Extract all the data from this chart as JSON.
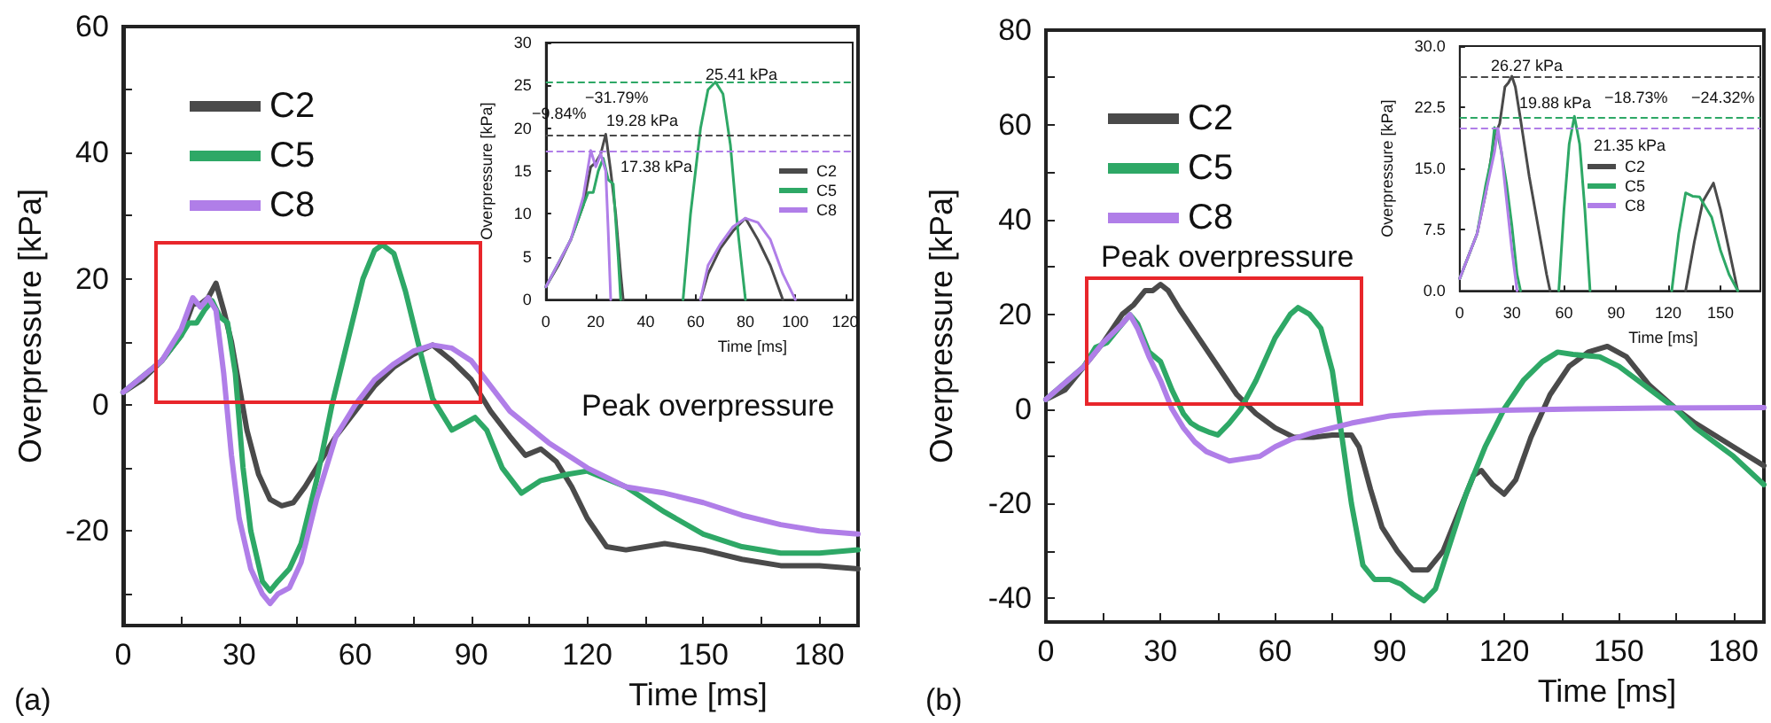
{
  "chart_data": [
    {
      "type": "line",
      "xlabel": "Time [ms]",
      "ylabel": "Overpressure [kPa]",
      "xlim": [
        0,
        190
      ],
      "ylim": [
        -35,
        60
      ],
      "xticks": [
        0,
        {
          "value": 15,
          "label": null
        },
        30,
        {
          "value": 45,
          "label": null
        },
        60,
        {
          "value": 75,
          "label": null
        },
        90,
        {
          "value": 105,
          "label": null
        },
        120,
        {
          "value": 135,
          "label": null
        },
        150,
        {
          "value": 165,
          "label": null
        },
        180
      ],
      "yticks": [
        {
          "value": -30,
          "label": null
        },
        -20,
        {
          "value": -10,
          "label": null
        },
        0,
        {
          "value": 10,
          "label": null
        },
        20,
        {
          "value": 30,
          "label": null
        },
        40,
        {
          "value": 50,
          "label": null
        },
        60
      ],
      "legend": "top left",
      "marker": "none",
      "line_style": "solid",
      "series": [
        {
          "name": "C2",
          "color": "#4a4a4a",
          "x": [
            0,
            5,
            10,
            15,
            18,
            20,
            22,
            24,
            26,
            28,
            30,
            32,
            35,
            38,
            41,
            44,
            47,
            50,
            55,
            60,
            65,
            70,
            75,
            80,
            85,
            90,
            95,
            100,
            104,
            108,
            112,
            116,
            120,
            125,
            130,
            140,
            150,
            160,
            170,
            180,
            190
          ],
          "values": [
            2,
            4,
            7,
            11,
            16,
            16,
            17,
            19.3,
            15,
            10,
            3,
            -4,
            -11,
            -15,
            -16,
            -15.5,
            -13,
            -10,
            -5,
            -1,
            3,
            6,
            8,
            9.5,
            7,
            4,
            -1,
            -5,
            -8,
            -7,
            -9,
            -13,
            -18,
            -22.5,
            -23,
            -22,
            -23,
            -24.5,
            -25.5,
            -25.5,
            -26
          ]
        },
        {
          "name": "C5",
          "color": "#2ea866",
          "x": [
            0,
            10,
            15,
            17,
            19,
            21,
            23,
            25,
            27,
            29,
            31,
            33,
            36,
            38,
            40,
            43,
            46,
            50,
            54,
            58,
            62,
            65,
            67,
            70,
            73,
            77,
            80,
            83,
            85,
            88,
            91,
            94,
            98,
            103,
            108,
            115,
            120,
            130,
            140,
            150,
            160,
            170,
            180,
            190
          ],
          "values": [
            2,
            7,
            11,
            13,
            13,
            15,
            16.5,
            14,
            13,
            5,
            -10,
            -20,
            -28,
            -29.5,
            -28,
            -26,
            -22,
            -12,
            0,
            10,
            20,
            24.5,
            25.4,
            24,
            18,
            8,
            1,
            -2,
            -4,
            -3,
            -2,
            -4,
            -10,
            -14,
            -12,
            -11,
            -10.5,
            -13,
            -17,
            -20.5,
            -22.5,
            -23.5,
            -23.5,
            -23
          ]
        },
        {
          "name": "C8",
          "color": "#b07ee8",
          "x": [
            0,
            10,
            15,
            18,
            20,
            22,
            24,
            26,
            28,
            30,
            33,
            36,
            38,
            40,
            43,
            46,
            50,
            55,
            60,
            65,
            70,
            75,
            80,
            85,
            90,
            95,
            100,
            110,
            120,
            130,
            140,
            150,
            160,
            170,
            180,
            190
          ],
          "values": [
            2,
            7,
            12,
            17,
            15.5,
            17,
            15,
            5,
            -8,
            -18,
            -26,
            -30,
            -31.5,
            -30,
            -29,
            -25,
            -15,
            -5,
            0,
            4,
            6.5,
            8.5,
            9.5,
            9,
            7,
            3,
            -1,
            -6,
            -10,
            -13,
            -14,
            -15.5,
            -17.5,
            -19,
            -20,
            -20.5
          ]
        }
      ],
      "annotations": [
        "Peak overpressure",
        "(a)"
      ]
    },
    {
      "type": "line",
      "xlabel": "Time [ms]",
      "ylabel": "Overpressure [kPa]",
      "xlim": [
        0,
        123
      ],
      "ylim": [
        0,
        30
      ],
      "xticks": [
        0,
        20,
        40,
        60,
        80,
        100,
        120
      ],
      "yticks": [
        0,
        5,
        10,
        15,
        20,
        25,
        30
      ],
      "legend": "right",
      "marker": "none",
      "line_style": "solid",
      "series": [
        {
          "name": "C2",
          "color": "#4a4a4a",
          "x": [
            0,
            5,
            10,
            15,
            18,
            20,
            22,
            24,
            26,
            28,
            30,
            31,
            45,
            62,
            65,
            70,
            75,
            80,
            85,
            90,
            95
          ],
          "values": [
            1.5,
            4,
            7,
            11,
            15.5,
            16,
            17,
            19.3,
            15,
            10,
            3,
            0,
            null,
            0,
            3,
            6,
            8,
            9.5,
            7,
            4,
            0
          ]
        },
        {
          "name": "C5",
          "color": "#2ea866",
          "x": [
            0,
            10,
            15,
            17,
            19,
            21,
            23,
            25,
            27,
            29,
            30,
            45,
            55,
            58,
            62,
            65,
            68,
            71,
            74,
            77,
            80
          ],
          "values": [
            1.5,
            7,
            11,
            12.5,
            12.5,
            15,
            16.5,
            14,
            13.5,
            5,
            0,
            null,
            0,
            10,
            20,
            24.5,
            25.4,
            24,
            18,
            8,
            0
          ]
        },
        {
          "name": "C8",
          "color": "#b07ee8",
          "x": [
            0,
            10,
            15,
            18,
            20,
            22,
            24,
            25,
            26,
            45,
            62,
            65,
            70,
            75,
            80,
            85,
            90,
            95,
            100
          ],
          "values": [
            1.5,
            7,
            12,
            17.4,
            15.5,
            17,
            15,
            8,
            0,
            null,
            0,
            4,
            6.5,
            8.5,
            9.5,
            9,
            7,
            3,
            0
          ]
        }
      ],
      "ref_lines": [
        {
          "axis": "y",
          "value": 25.41,
          "color": "#2ea866",
          "line_style": "dashed"
        },
        {
          "axis": "y",
          "value": 19.28,
          "color": "#4a4a4a",
          "line_style": "dashed"
        },
        {
          "axis": "y",
          "value": 17.38,
          "color": "#b07ee8",
          "line_style": "dashed"
        }
      ],
      "annotations": [
        "25.41 kPa",
        "−31.79%",
        "−9.84%",
        "19.28 kPa",
        "17.38 kPa"
      ]
    },
    {
      "type": "line",
      "xlabel": "Time [ms]",
      "ylabel": "Overpressure [kPa]",
      "xlim": [
        0,
        188
      ],
      "ylim": [
        -45,
        80
      ],
      "xticks": [
        0,
        {
          "value": 15,
          "label": null
        },
        30,
        {
          "value": 45,
          "label": null
        },
        60,
        {
          "value": 75,
          "label": null
        },
        90,
        {
          "value": 105,
          "label": null
        },
        120,
        {
          "value": 135,
          "label": null
        },
        150,
        {
          "value": 165,
          "label": null
        },
        180
      ],
      "yticks": [
        -40,
        {
          "value": -30,
          "label": null
        },
        -20,
        {
          "value": -10,
          "label": null
        },
        0,
        {
          "value": 10,
          "label": null
        },
        20,
        {
          "value": 30,
          "label": null
        },
        40,
        {
          "value": 50,
          "label": null
        },
        60,
        {
          "value": 70,
          "label": null
        },
        80
      ],
      "legend": "top left",
      "marker": "none",
      "line_style": "solid",
      "series": [
        {
          "name": "C2",
          "color": "#4a4a4a",
          "x": [
            0,
            5,
            10,
            15,
            20,
            23,
            26,
            28,
            30,
            32,
            35,
            40,
            45,
            50,
            55,
            60,
            65,
            70,
            75,
            80,
            82,
            85,
            88,
            92,
            96,
            100,
            104,
            108,
            112,
            114,
            117,
            120,
            123,
            127,
            132,
            137,
            142,
            147,
            152,
            158,
            165,
            170,
            180,
            188
          ],
          "values": [
            2,
            4,
            9,
            14,
            20,
            22,
            25,
            25,
            26.3,
            25,
            21,
            15,
            9,
            3,
            -1,
            -4,
            -6,
            -6,
            -5.5,
            -5.5,
            -8,
            -17,
            -25,
            -30,
            -34,
            -34,
            -30,
            -22,
            -14,
            -13,
            -16,
            -18,
            -15,
            -6,
            3,
            9,
            12,
            13.2,
            11,
            5,
            0,
            -3,
            -8,
            -12
          ]
        },
        {
          "name": "C5",
          "color": "#2ea866",
          "x": [
            0,
            10,
            13,
            16,
            19,
            22,
            24,
            27,
            30,
            33,
            36,
            38,
            40,
            43,
            45,
            48,
            51,
            55,
            60,
            64,
            66,
            69,
            72,
            75,
            77,
            80,
            83,
            86,
            90,
            93,
            96,
            99,
            102,
            106,
            110,
            115,
            120,
            125,
            130,
            134,
            138,
            145,
            150,
            155,
            160,
            165,
            170,
            180,
            188
          ],
          "values": [
            2,
            9,
            13,
            14,
            17,
            19.9,
            18,
            12,
            10,
            4,
            -1,
            -3,
            -4,
            -5,
            -5.5,
            -3,
            0,
            6,
            15,
            20,
            21.4,
            20,
            17,
            8,
            -3,
            -20,
            -33,
            -36,
            -36,
            -37,
            -39,
            -40.5,
            -38,
            -28,
            -18,
            -8,
            0,
            6,
            10,
            12,
            11.5,
            11,
            9,
            6,
            3,
            0,
            -4,
            -10,
            -16
          ]
        },
        {
          "name": "C8",
          "color": "#b07ee8",
          "x": [
            0,
            10,
            15,
            20,
            22,
            24,
            27,
            30,
            33,
            36,
            39,
            42,
            45,
            48,
            52,
            56,
            60,
            64,
            70,
            80,
            90,
            100,
            120,
            140,
            160,
            188
          ],
          "values": [
            2,
            9,
            14,
            18,
            19.9,
            17,
            11,
            6,
            0,
            -4,
            -7,
            -9,
            -10,
            -11,
            -10.5,
            -10,
            -8,
            -6.5,
            -5,
            -3,
            -1.5,
            -0.8,
            -0.3,
            0,
            0.2,
            0.3
          ]
        }
      ],
      "annotations": [
        "Peak overpressure",
        "(b)"
      ]
    },
    {
      "type": "line",
      "xlabel": "Time [ms]",
      "ylabel": "Overpressure [kPa]",
      "xlim": [
        0,
        173
      ],
      "ylim": [
        0,
        30
      ],
      "xticks": [
        0,
        30,
        60,
        90,
        120,
        150
      ],
      "yticks": [
        {
          "value": 0,
          "label": "0.0"
        },
        {
          "value": 7.5,
          "label": "7.5"
        },
        {
          "value": 15,
          "label": "15.0"
        },
        {
          "value": 22.5,
          "label": "22.5"
        },
        {
          "value": 30,
          "label": "30.0"
        }
      ],
      "legend": "right",
      "marker": "none",
      "line_style": "solid",
      "series": [
        {
          "name": "C2",
          "color": "#4a4a4a",
          "x": [
            0,
            10,
            15,
            20,
            23,
            26,
            28,
            30,
            32,
            35,
            40,
            45,
            50,
            52,
            90,
            130,
            135,
            140,
            146,
            150,
            155,
            160
          ],
          "values": [
            1.5,
            7,
            12,
            19,
            20.5,
            25,
            25.5,
            26.3,
            25,
            21,
            14,
            8,
            2,
            0,
            null,
            0,
            6,
            11,
            13.2,
            10,
            5,
            0
          ]
        },
        {
          "name": "C5",
          "color": "#2ea866",
          "x": [
            0,
            10,
            15,
            18,
            20,
            22,
            24,
            27,
            30,
            33,
            35,
            45,
            57,
            60,
            63,
            66,
            69,
            72,
            75,
            100,
            122,
            126,
            130,
            134,
            138,
            145,
            150,
            155,
            160
          ],
          "values": [
            1.5,
            7,
            13,
            16,
            20,
            19,
            17,
            13,
            8,
            2,
            0,
            null,
            0,
            10,
            18,
            21.4,
            18,
            10,
            0,
            null,
            0,
            7,
            12,
            11.6,
            11.5,
            9,
            5,
            2,
            0
          ]
        },
        {
          "name": "C8",
          "color": "#b07ee8",
          "x": [
            0,
            10,
            15,
            20,
            22,
            24,
            27,
            30,
            33
          ],
          "values": [
            1.5,
            7,
            12,
            17,
            19.9,
            17,
            11,
            5,
            0
          ]
        }
      ],
      "ref_lines": [
        {
          "axis": "y",
          "value": 26.27,
          "color": "#4a4a4a",
          "line_style": "dashed"
        },
        {
          "axis": "y",
          "value": 21.35,
          "color": "#2ea866",
          "line_style": "dashed"
        },
        {
          "axis": "y",
          "value": 19.88,
          "color": "#b07ee8",
          "line_style": "dashed"
        }
      ],
      "annotations": [
        "26.27 kPa",
        "19.88 kPa",
        "−18.73%",
        "−24.32%",
        "21.35 kPa"
      ]
    }
  ]
}
